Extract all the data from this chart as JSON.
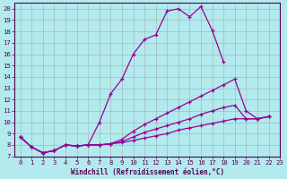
{
  "title": "",
  "xlabel": "Windchill (Refroidissement éolien,°C)",
  "ylabel": "",
  "bg_color": "#b2eaed",
  "line_color": "#990099",
  "grid_color": "#999999",
  "xlim": [
    -0.5,
    23
  ],
  "ylim": [
    7,
    20.5
  ],
  "xticks": [
    0,
    1,
    2,
    3,
    4,
    5,
    6,
    7,
    8,
    9,
    10,
    11,
    12,
    13,
    14,
    15,
    16,
    17,
    18,
    19,
    20,
    21,
    22,
    23
  ],
  "yticks": [
    7,
    8,
    9,
    10,
    11,
    12,
    13,
    14,
    15,
    16,
    17,
    18,
    19,
    20
  ],
  "series": [
    {
      "x": [
        0,
        1,
        2,
        3,
        4,
        5,
        6,
        7,
        8,
        9,
        10,
        11,
        12,
        13,
        14,
        15,
        16,
        17,
        18
      ],
      "y": [
        8.7,
        7.8,
        7.3,
        7.5,
        8.0,
        7.9,
        8.0,
        10.0,
        12.5,
        13.8,
        16.0,
        17.3,
        17.7,
        19.8,
        20.0,
        19.3,
        20.2,
        18.1,
        15.3
      ]
    },
    {
      "x": [
        0,
        1,
        2,
        3,
        4,
        5,
        6,
        7,
        8,
        9,
        10,
        11,
        12,
        13,
        14,
        15,
        16,
        17,
        18,
        19,
        20,
        21,
        22
      ],
      "y": [
        8.7,
        7.8,
        7.3,
        7.5,
        8.0,
        7.9,
        8.0,
        8.0,
        8.1,
        8.5,
        9.2,
        9.8,
        10.3,
        10.8,
        11.3,
        11.8,
        12.3,
        12.8,
        13.3,
        13.8,
        11.0,
        10.3,
        10.5
      ]
    },
    {
      "x": [
        0,
        1,
        2,
        3,
        4,
        5,
        6,
        7,
        8,
        9,
        10,
        11,
        12,
        13,
        14,
        15,
        16,
        17,
        18,
        19,
        20,
        21,
        22
      ],
      "y": [
        8.7,
        7.8,
        7.3,
        7.5,
        8.0,
        7.9,
        8.0,
        8.0,
        8.1,
        8.3,
        8.7,
        9.1,
        9.4,
        9.7,
        10.0,
        10.3,
        10.7,
        11.0,
        11.3,
        11.5,
        10.3,
        10.3,
        10.5
      ]
    },
    {
      "x": [
        0,
        1,
        2,
        3,
        4,
        5,
        6,
        7,
        8,
        9,
        10,
        11,
        12,
        13,
        14,
        15,
        16,
        17,
        18,
        19,
        20,
        21,
        22
      ],
      "y": [
        8.7,
        7.8,
        7.3,
        7.5,
        8.0,
        7.9,
        8.0,
        8.0,
        8.1,
        8.2,
        8.4,
        8.6,
        8.8,
        9.0,
        9.3,
        9.5,
        9.7,
        9.9,
        10.1,
        10.3,
        10.3,
        10.3,
        10.5
      ]
    }
  ]
}
